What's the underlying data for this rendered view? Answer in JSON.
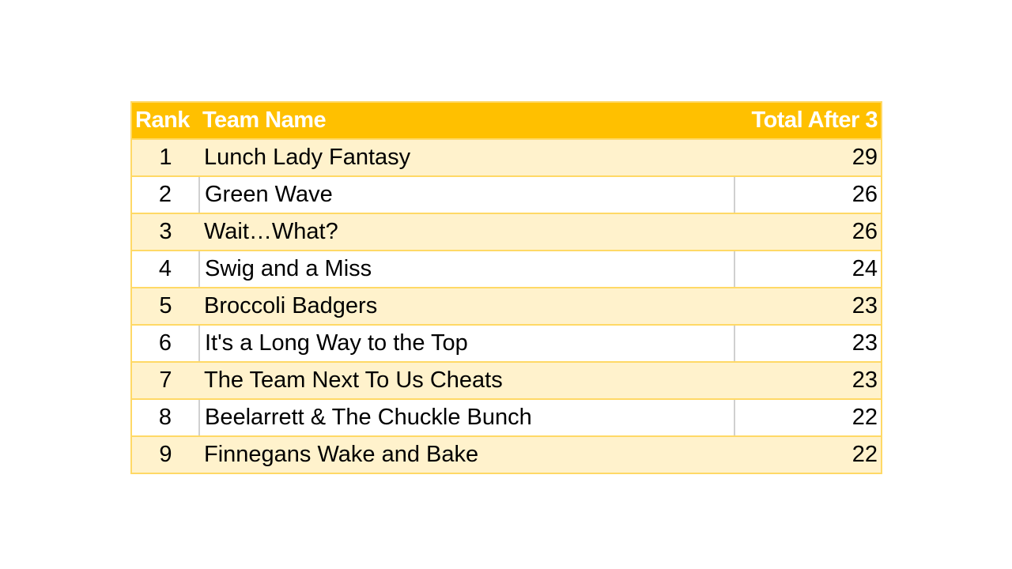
{
  "table": {
    "headers": [
      "Rank",
      "Team Name",
      "Total After 3"
    ],
    "rows": [
      {
        "rank": "1",
        "name": "Lunch Lady Fantasy",
        "total": "29"
      },
      {
        "rank": "2",
        "name": "Green Wave",
        "total": "26"
      },
      {
        "rank": "3",
        "name": "Wait…What?",
        "total": "26"
      },
      {
        "rank": "4",
        "name": "Swig and a Miss",
        "total": "24"
      },
      {
        "rank": "5",
        "name": "Broccoli Badgers",
        "total": "23"
      },
      {
        "rank": "6",
        "name": "It's a Long Way to the Top",
        "total": "23"
      },
      {
        "rank": "7",
        "name": "The Team Next To Us Cheats",
        "total": "23"
      },
      {
        "rank": "8",
        "name": "Beelarrett & The Chuckle Bunch",
        "total": "22"
      },
      {
        "rank": "9",
        "name": "Finnegans Wake and Bake",
        "total": "22"
      }
    ],
    "colors": {
      "header": "#ffc000",
      "band": "#fff2cc",
      "border": "#ffd966"
    }
  }
}
